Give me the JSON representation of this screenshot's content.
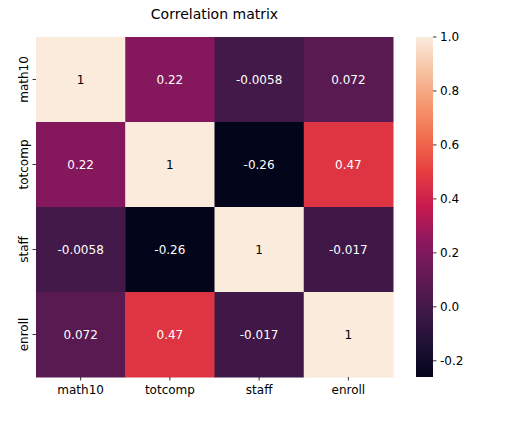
{
  "chart_data": {
    "type": "heatmap",
    "title": "Correlation matrix",
    "x_categories": [
      "math10",
      "totcomp",
      "staff",
      "enroll"
    ],
    "y_categories": [
      "math10",
      "totcomp",
      "staff",
      "enroll"
    ],
    "cells": [
      [
        1,
        0.22,
        -0.0058,
        0.072
      ],
      [
        0.22,
        1,
        -0.26,
        0.47
      ],
      [
        -0.0058,
        -0.26,
        1,
        -0.017
      ],
      [
        0.072,
        0.47,
        -0.017,
        1
      ]
    ],
    "data_labels": true,
    "colorbar_range": [
      -0.26,
      1
    ],
    "colorbar_ticks": [
      -0.2,
      {
        "value": 0,
        "label": "0.0"
      },
      0.2,
      0.4,
      0.6,
      0.8,
      {
        "value": 1,
        "label": "1.0"
      }
    ]
  }
}
